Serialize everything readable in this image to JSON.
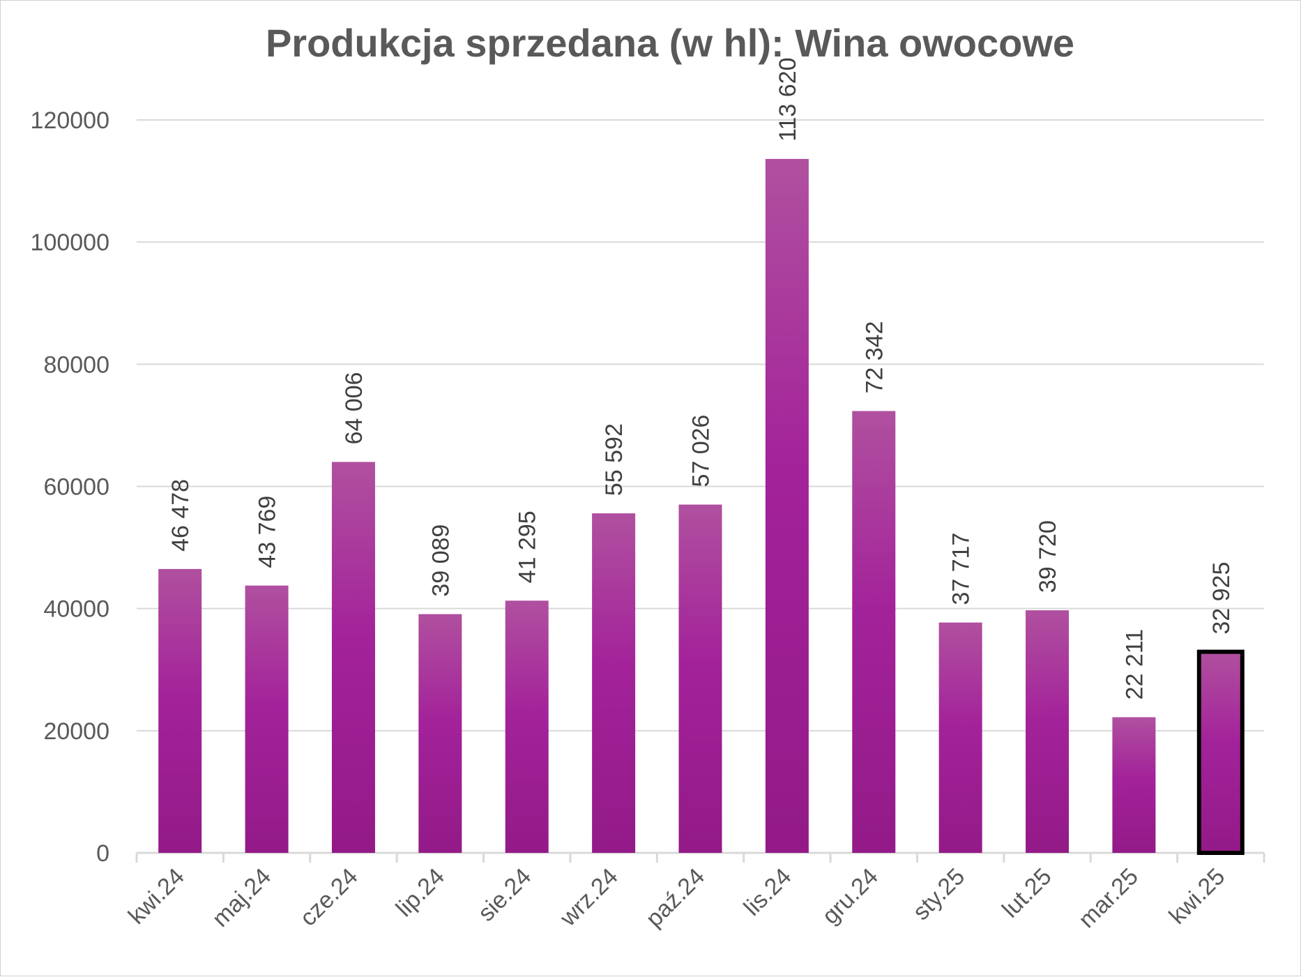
{
  "chart_data": {
    "type": "bar",
    "title": "Produkcja sprzedana (w hl): Wina owocowe",
    "xlabel": "",
    "ylabel": "",
    "categories": [
      "kwi.24",
      "maj.24",
      "cze.24",
      "lip.24",
      "sie.24",
      "wrz.24",
      "paź.24",
      "lis.24",
      "gru.24",
      "sty.25",
      "lut.25",
      "mar.25",
      "kwi.25"
    ],
    "values": [
      46478,
      43769,
      64006,
      39089,
      41295,
      55592,
      57026,
      113620,
      72342,
      37717,
      39720,
      22211,
      32925
    ],
    "data_labels": [
      "46 478",
      "43 769",
      "64 006",
      "39 089",
      "41 295",
      "55 592",
      "57 026",
      "113 620",
      "72 342",
      "37 717",
      "39 720",
      "22 211",
      "32 925"
    ],
    "yticks": [
      0,
      20000,
      40000,
      60000,
      80000,
      100000,
      120000
    ],
    "ylim": [
      0,
      120000
    ],
    "grid": true,
    "legend": "none",
    "highlighted_category": "kwi.25",
    "colors": {
      "bar_top": "#b0509f",
      "bar_mid": "#a3229a",
      "bar_bottom": "#931a88",
      "highlight_border": "#000000",
      "gridline": "#d9d9d9",
      "axis": "#d9d9d9",
      "text": "#595959"
    }
  }
}
